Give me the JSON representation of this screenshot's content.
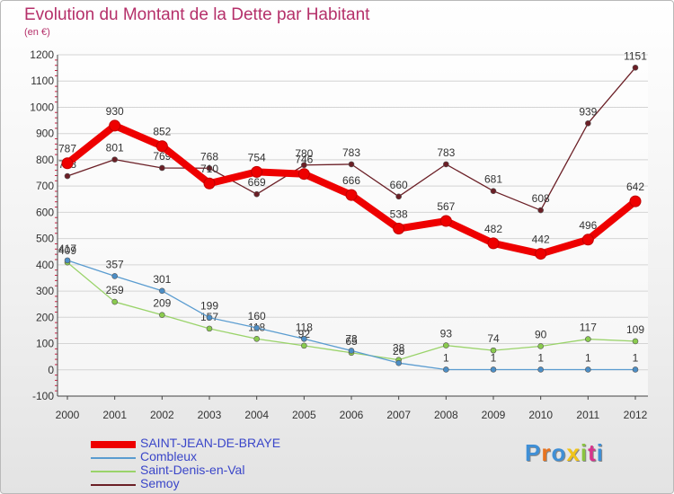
{
  "title": "Evolution du Montant de la Dette par Habitant",
  "subtitle": "(en €)",
  "logo": {
    "text": "Proxiti",
    "colors": [
      "#3f8fd6",
      "#e8731f",
      "#3f8fd6",
      "#f0c419",
      "#8bc53f",
      "#d8338c",
      "#3f8fd6"
    ]
  },
  "chart_data": {
    "type": "line",
    "x": [
      "2000",
      "2001",
      "2002",
      "2003",
      "2004",
      "2005",
      "2006",
      "2007",
      "2008",
      "2009",
      "2010",
      "2011",
      "2012"
    ],
    "ylim": [
      -100,
      1200
    ],
    "yticks": [
      -100,
      0,
      100,
      200,
      300,
      400,
      500,
      600,
      700,
      800,
      900,
      1000,
      1100,
      1200
    ],
    "grid": "horizontal",
    "legend": "bottom-left",
    "series": [
      {
        "name": "Semoy",
        "color": "#6b1f26",
        "marker": "#6b1f26",
        "values": [
          738,
          801,
          769,
          768,
          669,
          780,
          783,
          660,
          783,
          681,
          608,
          939,
          1151
        ]
      },
      {
        "name": "Saint-Denis-en-Val",
        "color": "#9ad36a",
        "marker": "#8acb4e",
        "values": [
          409,
          259,
          209,
          157,
          118,
          92,
          65,
          38,
          93,
          74,
          90,
          117,
          109
        ]
      },
      {
        "name": "Combleux",
        "color": "#5a9cd0",
        "marker": "#4c8ec6",
        "values": [
          417,
          357,
          301,
          199,
          160,
          118,
          73,
          26,
          1,
          1,
          1,
          1,
          1
        ]
      },
      {
        "name": "SAINT-JEAN-DE-BRAYE",
        "color": "#ee0000",
        "marker": "#ee0000",
        "bold": true,
        "values": [
          787,
          930,
          852,
          710,
          754,
          746,
          666,
          538,
          567,
          482,
          442,
          496,
          642
        ]
      }
    ]
  }
}
